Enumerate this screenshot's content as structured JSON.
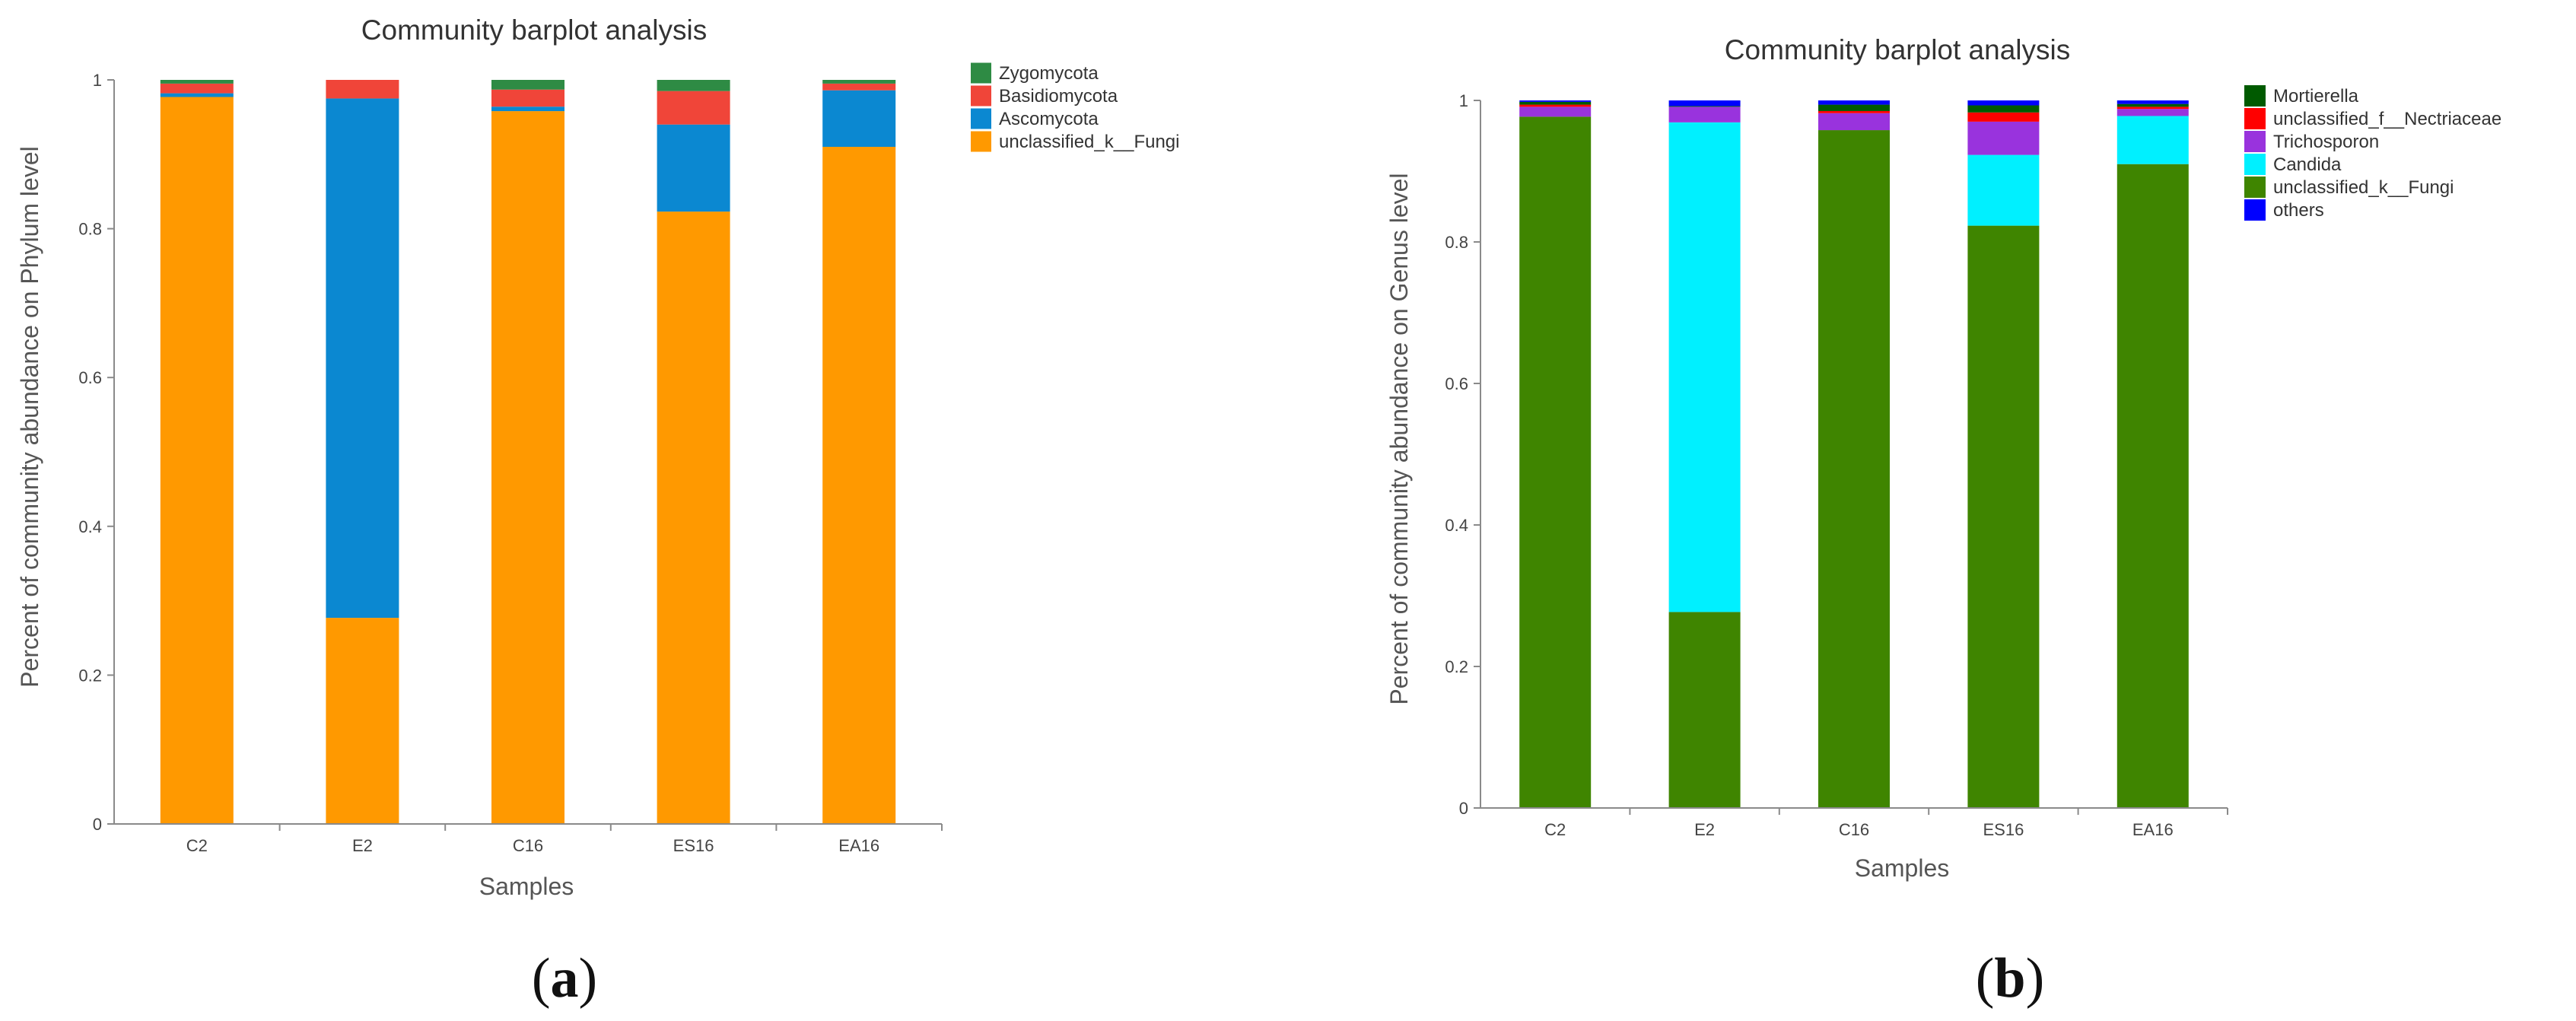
{
  "chart_data": [
    {
      "type": "bar",
      "stacked": true,
      "title": "Community barplot analysis",
      "xlabel": "Samples",
      "ylabel": "Percent of community abundance on Phylum level",
      "ylim": [
        0,
        1
      ],
      "yticks": [
        "0",
        "0.2",
        "0.4",
        "0.6",
        "0.8",
        "1"
      ],
      "categories": [
        "C2",
        "E2",
        "C16",
        "ES16",
        "EA16"
      ],
      "legend_position": "top-right",
      "panel_label": {
        "open": "(",
        "letter": "a",
        "close": ")"
      },
      "series": [
        {
          "name": "unclassified_k__Fungi",
          "color": "#ff9900",
          "values": [
            0.977,
            0.277,
            0.958,
            0.823,
            0.91
          ]
        },
        {
          "name": "Ascomycota",
          "color": "#0b88d1",
          "values": [
            0.005,
            0.698,
            0.006,
            0.117,
            0.076
          ]
        },
        {
          "name": "Basidiomycota",
          "color": "#f04539",
          "values": [
            0.013,
            0.025,
            0.023,
            0.045,
            0.009
          ]
        },
        {
          "name": "Zygomycota",
          "color": "#2e8b44",
          "values": [
            0.005,
            0.0,
            0.013,
            0.015,
            0.005
          ]
        }
      ],
      "legend": [
        "Zygomycota",
        "Basidiomycota",
        "Ascomycota",
        "unclassified_k__Fungi"
      ]
    },
    {
      "type": "bar",
      "stacked": true,
      "title": "Community barplot analysis",
      "xlabel": "Samples",
      "ylabel": "Percent of community abundance on Genus level",
      "ylim": [
        0,
        1
      ],
      "yticks": [
        "0",
        "0.2",
        "0.4",
        "0.6",
        "0.8",
        "1"
      ],
      "categories": [
        "C2",
        "E2",
        "C16",
        "ES16",
        "EA16"
      ],
      "legend_position": "top-right",
      "panel_label": {
        "open": "(",
        "letter": "b",
        "close": ")"
      },
      "series": [
        {
          "name": "unclassified_k__Fungi",
          "color": "#3f8500",
          "values": [
            0.977,
            0.277,
            0.958,
            0.823,
            0.91
          ]
        },
        {
          "name": "Candida",
          "color": "#00f0ff",
          "values": [
            0.0,
            0.692,
            0.0,
            0.1,
            0.068
          ]
        },
        {
          "name": "Trichosporon",
          "color": "#9933dd",
          "values": [
            0.014,
            0.022,
            0.024,
            0.047,
            0.01
          ]
        },
        {
          "name": "unclassified_f__Nectriaceae",
          "color": "#ff0000",
          "values": [
            0.003,
            0.0,
            0.003,
            0.013,
            0.003
          ]
        },
        {
          "name": "Mortierella",
          "color": "#005a00",
          "values": [
            0.004,
            0.001,
            0.009,
            0.01,
            0.004
          ]
        },
        {
          "name": "others",
          "color": "#0000ff",
          "values": [
            0.002,
            0.008,
            0.006,
            0.007,
            0.005
          ]
        }
      ],
      "legend": [
        "Mortierella",
        "unclassified_f__Nectriaceae",
        "Trichosporon",
        "Candida",
        "unclassified_k__Fungi",
        "others"
      ]
    }
  ]
}
